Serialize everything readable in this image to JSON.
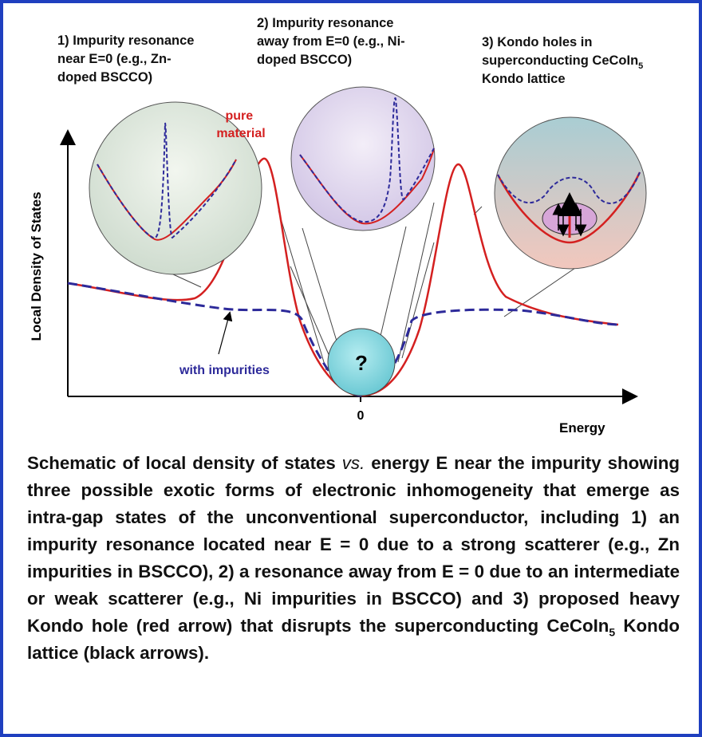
{
  "figure": {
    "y_axis_label": "Local Density of States",
    "x_axis_label": "Energy",
    "zero_label": "0",
    "question_mark": "?",
    "pure_label": [
      "pure",
      "material"
    ],
    "impurities_label": "with impurities",
    "insets": [
      {
        "lines": [
          "1) Impurity resonance",
          "near E=0 (e.g., Zn-",
          "doped BSCCO)"
        ]
      },
      {
        "lines": [
          "2) Impurity resonance",
          "away from E=0 (e.g., Ni-",
          "doped BSCCO)"
        ]
      },
      {
        "lines": [
          "3) Kondo holes in",
          "superconducting CeCoIn",
          "5",
          "Kondo lattice"
        ]
      }
    ]
  },
  "caption": [
    "Schematic of local density of states ",
    "vs.",
    " energy E near the impurity showing three possible exotic forms of electronic inhomogeneity that emerge as intra-gap states of the unconventional superconductor, including 1) an impurity resonance located near E = 0 due to a strong scatterer (e.g., Zn impurities in BSCCO), 2) a resonance away from E = 0 due to an intermediate or weak scatterer (e.g., Ni impurities in BSCCO) and 3) proposed heavy Kondo hole (red arrow) that disrupts the superconducting CeCoIn",
    "5",
    " Kondo lattice (black arrows)."
  ]
}
